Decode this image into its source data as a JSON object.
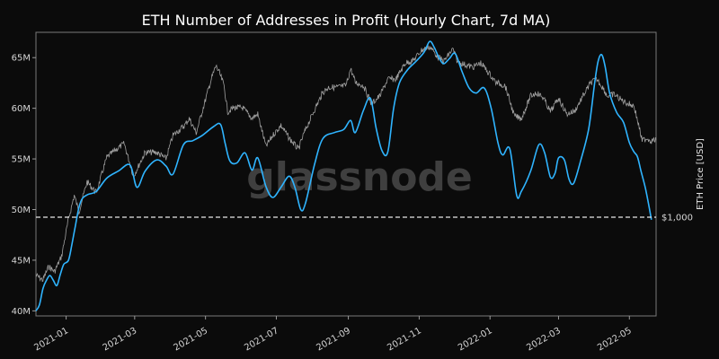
{
  "chart_data": {
    "type": "line",
    "title": "ETH Number of Addresses in Profit (Hourly Chart, 7d MA)",
    "watermark": "glassnode",
    "y_left": {
      "ticks": [
        40,
        45,
        50,
        55,
        60,
        65
      ],
      "tick_labels": [
        "40M",
        "45M",
        "50M",
        "55M",
        "60M",
        "65M"
      ],
      "range": [
        39.5,
        67.5
      ]
    },
    "y_right": {
      "label": "ETH Price [USD]",
      "reference_value": 1000,
      "reference_label": "$1,000"
    },
    "x": {
      "range": [
        "2020-12-06",
        "2022-05-24"
      ],
      "ticks": [
        "2021-01-01",
        "2021-03-01",
        "2021-05-01",
        "2021-07-01",
        "2021-09-01",
        "2021-11-01",
        "2022-01-01",
        "2022-03-01",
        "2022-05-01"
      ],
      "tick_labels": [
        "2021-01",
        "2021-03",
        "2021-05",
        "2021-07",
        "2021-09",
        "2021-11",
        "2022-01",
        "2022-03",
        "2022-05"
      ]
    },
    "series": [
      {
        "role": "addresses-in-profit",
        "color": "#2fb4ff",
        "points": [
          [
            "2020-12-06",
            40.0
          ],
          [
            "2020-12-09",
            40.6
          ],
          [
            "2020-12-12",
            42.2
          ],
          [
            "2020-12-15",
            43.0
          ],
          [
            "2020-12-18",
            43.5
          ],
          [
            "2020-12-21",
            43.0
          ],
          [
            "2020-12-24",
            42.5
          ],
          [
            "2020-12-27",
            43.6
          ],
          [
            "2020-12-30",
            44.6
          ],
          [
            "2021-01-03",
            45.0
          ],
          [
            "2021-01-06",
            46.6
          ],
          [
            "2021-01-09",
            48.4
          ],
          [
            "2021-01-12",
            50.2
          ],
          [
            "2021-01-15",
            51.1
          ],
          [
            "2021-01-20",
            51.5
          ],
          [
            "2021-01-27",
            51.8
          ],
          [
            "2021-02-05",
            53.1
          ],
          [
            "2021-02-15",
            53.8
          ],
          [
            "2021-02-25",
            54.4
          ],
          [
            "2021-03-03",
            52.2
          ],
          [
            "2021-03-10",
            53.8
          ],
          [
            "2021-03-20",
            54.9
          ],
          [
            "2021-03-28",
            54.3
          ],
          [
            "2021-04-03",
            53.5
          ],
          [
            "2021-04-12",
            56.4
          ],
          [
            "2021-04-20",
            56.8
          ],
          [
            "2021-04-28",
            57.3
          ],
          [
            "2021-05-08",
            58.2
          ],
          [
            "2021-05-14",
            58.4
          ],
          [
            "2021-05-18",
            56.5
          ],
          [
            "2021-05-22",
            54.8
          ],
          [
            "2021-05-28",
            54.6
          ],
          [
            "2021-06-04",
            55.6
          ],
          [
            "2021-06-10",
            53.9
          ],
          [
            "2021-06-15",
            55.1
          ],
          [
            "2021-06-22",
            52.3
          ],
          [
            "2021-06-28",
            51.2
          ],
          [
            "2021-07-05",
            52.2
          ],
          [
            "2021-07-12",
            53.3
          ],
          [
            "2021-07-17",
            52.2
          ],
          [
            "2021-07-22",
            50.0
          ],
          [
            "2021-07-26",
            50.6
          ],
          [
            "2021-08-03",
            54.5
          ],
          [
            "2021-08-10",
            57.0
          ],
          [
            "2021-08-20",
            57.6
          ],
          [
            "2021-08-28",
            57.9
          ],
          [
            "2021-09-03",
            58.8
          ],
          [
            "2021-09-07",
            57.6
          ],
          [
            "2021-09-14",
            59.8
          ],
          [
            "2021-09-20",
            61.0
          ],
          [
            "2021-09-25",
            58.0
          ],
          [
            "2021-09-30",
            55.8
          ],
          [
            "2021-10-05",
            55.7
          ],
          [
            "2021-10-10",
            60.0
          ],
          [
            "2021-10-15",
            62.5
          ],
          [
            "2021-10-22",
            63.8
          ],
          [
            "2021-10-29",
            64.6
          ],
          [
            "2021-11-05",
            65.5
          ],
          [
            "2021-11-10",
            66.6
          ],
          [
            "2021-11-14",
            66.0
          ],
          [
            "2021-11-18",
            65.0
          ],
          [
            "2021-11-22",
            64.4
          ],
          [
            "2021-11-27",
            64.9
          ],
          [
            "2021-12-02",
            65.4
          ],
          [
            "2021-12-08",
            63.6
          ],
          [
            "2021-12-14",
            62.0
          ],
          [
            "2021-12-20",
            61.5
          ],
          [
            "2021-12-27",
            62.0
          ],
          [
            "2022-01-02",
            60.0
          ],
          [
            "2022-01-08",
            56.5
          ],
          [
            "2022-01-12",
            55.4
          ],
          [
            "2022-01-18",
            56.0
          ],
          [
            "2022-01-24",
            51.4
          ],
          [
            "2022-01-28",
            51.8
          ],
          [
            "2022-02-05",
            53.8
          ],
          [
            "2022-02-12",
            56.4
          ],
          [
            "2022-02-17",
            55.6
          ],
          [
            "2022-02-22",
            53.2
          ],
          [
            "2022-02-26",
            53.6
          ],
          [
            "2022-03-01",
            55.1
          ],
          [
            "2022-03-06",
            54.9
          ],
          [
            "2022-03-10",
            53.0
          ],
          [
            "2022-03-14",
            52.6
          ],
          [
            "2022-03-20",
            54.8
          ],
          [
            "2022-03-27",
            58.0
          ],
          [
            "2022-04-01",
            62.4
          ],
          [
            "2022-04-04",
            64.6
          ],
          [
            "2022-04-07",
            65.3
          ],
          [
            "2022-04-10",
            64.2
          ],
          [
            "2022-04-14",
            61.5
          ],
          [
            "2022-04-20",
            59.6
          ],
          [
            "2022-04-26",
            58.6
          ],
          [
            "2022-05-01",
            56.6
          ],
          [
            "2022-05-05",
            55.7
          ],
          [
            "2022-05-08",
            55.2
          ],
          [
            "2022-05-11",
            53.8
          ],
          [
            "2022-05-15",
            52.0
          ],
          [
            "2022-05-20",
            49.0
          ]
        ]
      },
      {
        "role": "eth-price",
        "color": "#a0a0a0",
        "points": [
          [
            "2020-12-06",
            590
          ],
          [
            "2020-12-12",
            565
          ],
          [
            "2020-12-17",
            640
          ],
          [
            "2020-12-22",
            610
          ],
          [
            "2020-12-28",
            700
          ],
          [
            "2021-01-03",
            980
          ],
          [
            "2021-01-08",
            1220
          ],
          [
            "2021-01-12",
            1050
          ],
          [
            "2021-01-19",
            1380
          ],
          [
            "2021-01-27",
            1250
          ],
          [
            "2021-02-05",
            1720
          ],
          [
            "2021-02-13",
            1850
          ],
          [
            "2021-02-20",
            1950
          ],
          [
            "2021-02-28",
            1450
          ],
          [
            "2021-03-10",
            1800
          ],
          [
            "2021-03-20",
            1800
          ],
          [
            "2021-03-28",
            1700
          ],
          [
            "2021-04-03",
            2100
          ],
          [
            "2021-04-13",
            2300
          ],
          [
            "2021-04-17",
            2450
          ],
          [
            "2021-04-23",
            2150
          ],
          [
            "2021-04-30",
            2800
          ],
          [
            "2021-05-06",
            3500
          ],
          [
            "2021-05-10",
            3950
          ],
          [
            "2021-05-13",
            3700
          ],
          [
            "2021-05-17",
            3300
          ],
          [
            "2021-05-20",
            2600
          ],
          [
            "2021-05-25",
            2700
          ],
          [
            "2021-06-02",
            2700
          ],
          [
            "2021-06-10",
            2450
          ],
          [
            "2021-06-15",
            2550
          ],
          [
            "2021-06-22",
            1900
          ],
          [
            "2021-06-28",
            2100
          ],
          [
            "2021-07-05",
            2300
          ],
          [
            "2021-07-12",
            2050
          ],
          [
            "2021-07-20",
            1850
          ],
          [
            "2021-07-25",
            2150
          ],
          [
            "2021-08-02",
            2600
          ],
          [
            "2021-08-10",
            3100
          ],
          [
            "2021-08-15",
            3250
          ],
          [
            "2021-08-22",
            3250
          ],
          [
            "2021-08-30",
            3300
          ],
          [
            "2021-09-03",
            3850
          ],
          [
            "2021-09-07",
            3400
          ],
          [
            "2021-09-14",
            3300
          ],
          [
            "2021-09-21",
            2800
          ],
          [
            "2021-09-28",
            3000
          ],
          [
            "2021-10-05",
            3500
          ],
          [
            "2021-10-12",
            3500
          ],
          [
            "2021-10-20",
            4050
          ],
          [
            "2021-10-27",
            4150
          ],
          [
            "2021-11-03",
            4550
          ],
          [
            "2021-11-10",
            4700
          ],
          [
            "2021-11-17",
            4300
          ],
          [
            "2021-11-22",
            4100
          ],
          [
            "2021-11-30",
            4600
          ],
          [
            "2021-12-04",
            4100
          ],
          [
            "2021-12-10",
            4000
          ],
          [
            "2021-12-17",
            3900
          ],
          [
            "2021-12-24",
            4050
          ],
          [
            "2021-12-31",
            3700
          ],
          [
            "2022-01-06",
            3400
          ],
          [
            "2022-01-14",
            3300
          ],
          [
            "2022-01-22",
            2500
          ],
          [
            "2022-01-28",
            2450
          ],
          [
            "2022-02-05",
            3000
          ],
          [
            "2022-02-10",
            3100
          ],
          [
            "2022-02-16",
            2950
          ],
          [
            "2022-02-22",
            2600
          ],
          [
            "2022-03-01",
            2950
          ],
          [
            "2022-03-08",
            2550
          ],
          [
            "2022-03-15",
            2620
          ],
          [
            "2022-03-22",
            3000
          ],
          [
            "2022-03-29",
            3400
          ],
          [
            "2022-04-03",
            3500
          ],
          [
            "2022-04-08",
            3250
          ],
          [
            "2022-04-12",
            3000
          ],
          [
            "2022-04-18",
            3050
          ],
          [
            "2022-04-24",
            2900
          ],
          [
            "2022-04-30",
            2800
          ],
          [
            "2022-05-05",
            2750
          ],
          [
            "2022-05-09",
            2300
          ],
          [
            "2022-05-12",
            2000
          ],
          [
            "2022-05-16",
            2050
          ],
          [
            "2022-05-20",
            2000
          ],
          [
            "2022-05-24",
            2020
          ]
        ]
      }
    ],
    "grid": false,
    "dashed_reference_line": true
  }
}
